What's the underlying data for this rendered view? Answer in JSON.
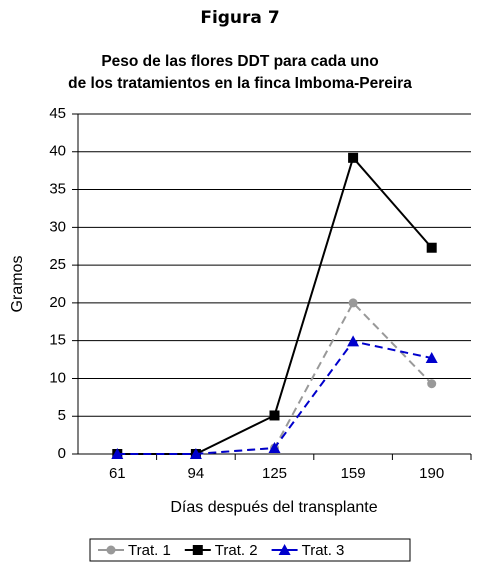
{
  "heading": "Figura 7",
  "chart_data": {
    "type": "line",
    "title": [
      "Peso de las flores DDT para cada uno",
      "de los tratamientos en la finca Imboma-Pereira"
    ],
    "x_label": "Días después del transplante",
    "y_label": "Gramos",
    "categories": [
      61,
      94,
      125,
      159,
      190
    ],
    "series": [
      {
        "name": "Trat. 1",
        "color": "#999999",
        "line_style": "dashed",
        "marker": "circle",
        "values": [
          0,
          0,
          0.8,
          20,
          9.3
        ]
      },
      {
        "name": "Trat. 2",
        "color": "#000000",
        "line_style": "solid",
        "marker": "square",
        "values": [
          0,
          0,
          5.1,
          39.2,
          27.3
        ]
      },
      {
        "name": "Trat. 3",
        "color": "#0000cc",
        "line_style": "dashed",
        "marker": "triangle",
        "values": [
          0,
          0,
          0.8,
          14.9,
          12.7
        ]
      }
    ],
    "ylim": [
      0,
      45
    ],
    "yticks": [
      0,
      5,
      10,
      15,
      20,
      25,
      30,
      35,
      40,
      45
    ],
    "grid": true,
    "legend": "bottom"
  }
}
